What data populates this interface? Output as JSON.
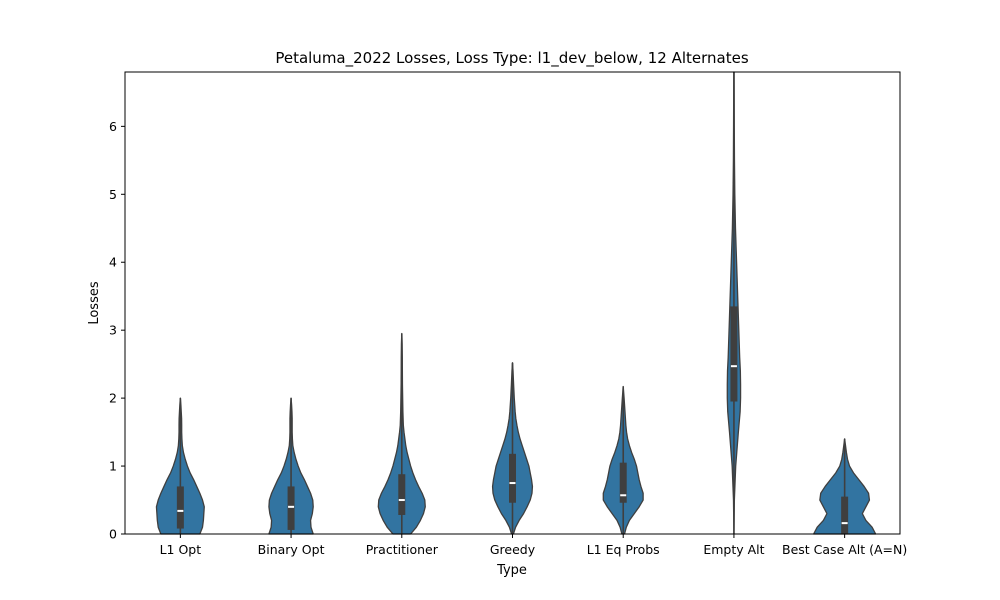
{
  "chart_data": {
    "type": "violin",
    "title": "Petaluma_2022 Losses, Loss Type: l1_dev_below, 12 Alternates",
    "xlabel": "Type",
    "ylabel": "Losses",
    "ylim": [
      0,
      6.8
    ],
    "yticks": [
      0,
      1,
      2,
      3,
      4,
      5,
      6
    ],
    "grid": false,
    "colors": {
      "fill": "#3274a1",
      "edge": "#3f3f3f",
      "box": "#3f3f3f",
      "median": "#ffffff"
    },
    "categories": [
      "L1 Opt",
      "Binary Opt",
      "Practitioner",
      "Greedy",
      "L1 Eq Probs",
      "Empty Alt",
      "Best Case Alt (A=N)"
    ],
    "series": [
      {
        "category": "L1 Opt",
        "min": 0,
        "q1": 0.08,
        "median": 0.34,
        "q3": 0.7,
        "max": 2.0,
        "profile": [
          [
            0,
            0.44
          ],
          [
            0.1,
            0.5
          ],
          [
            0.2,
            0.52
          ],
          [
            0.3,
            0.53
          ],
          [
            0.4,
            0.54
          ],
          [
            0.5,
            0.5
          ],
          [
            0.6,
            0.44
          ],
          [
            0.7,
            0.37
          ],
          [
            0.8,
            0.3
          ],
          [
            0.9,
            0.22
          ],
          [
            1.0,
            0.16
          ],
          [
            1.1,
            0.11
          ],
          [
            1.2,
            0.07
          ],
          [
            1.3,
            0.045
          ],
          [
            1.4,
            0.035
          ],
          [
            1.5,
            0.03
          ],
          [
            1.6,
            0.03
          ],
          [
            1.7,
            0.028
          ],
          [
            1.8,
            0.02
          ],
          [
            1.9,
            0.012
          ],
          [
            2.0,
            0
          ]
        ]
      },
      {
        "category": "Binary Opt",
        "min": 0,
        "q1": 0.06,
        "median": 0.4,
        "q3": 0.7,
        "max": 2.0,
        "profile": [
          [
            0,
            0.5
          ],
          [
            0.1,
            0.45
          ],
          [
            0.2,
            0.44
          ],
          [
            0.3,
            0.48
          ],
          [
            0.4,
            0.5
          ],
          [
            0.5,
            0.49
          ],
          [
            0.6,
            0.44
          ],
          [
            0.7,
            0.37
          ],
          [
            0.8,
            0.3
          ],
          [
            0.9,
            0.22
          ],
          [
            1.0,
            0.16
          ],
          [
            1.1,
            0.11
          ],
          [
            1.2,
            0.07
          ],
          [
            1.3,
            0.04
          ],
          [
            1.4,
            0.03
          ],
          [
            1.5,
            0.025
          ],
          [
            1.6,
            0.025
          ],
          [
            1.7,
            0.025
          ],
          [
            1.8,
            0.02
          ],
          [
            1.9,
            0.012
          ],
          [
            2.0,
            0
          ]
        ]
      },
      {
        "category": "Practitioner",
        "min": 0,
        "q1": 0.28,
        "median": 0.5,
        "q3": 0.88,
        "max": 2.95,
        "profile": [
          [
            0,
            0.2
          ],
          [
            0.1,
            0.33
          ],
          [
            0.2,
            0.42
          ],
          [
            0.3,
            0.49
          ],
          [
            0.4,
            0.53
          ],
          [
            0.5,
            0.52
          ],
          [
            0.6,
            0.46
          ],
          [
            0.7,
            0.38
          ],
          [
            0.8,
            0.31
          ],
          [
            0.9,
            0.25
          ],
          [
            1.0,
            0.2
          ],
          [
            1.1,
            0.16
          ],
          [
            1.2,
            0.12
          ],
          [
            1.3,
            0.09
          ],
          [
            1.4,
            0.07
          ],
          [
            1.5,
            0.05
          ],
          [
            1.6,
            0.035
          ],
          [
            1.8,
            0.025
          ],
          [
            2.0,
            0.02
          ],
          [
            2.2,
            0.015
          ],
          [
            2.4,
            0.013
          ],
          [
            2.6,
            0.012
          ],
          [
            2.8,
            0.008
          ],
          [
            2.95,
            0
          ]
        ]
      },
      {
        "category": "Greedy",
        "min": 0,
        "q1": 0.46,
        "median": 0.75,
        "q3": 1.18,
        "max": 2.52,
        "profile": [
          [
            0,
            0.02
          ],
          [
            0.1,
            0.07
          ],
          [
            0.2,
            0.15
          ],
          [
            0.3,
            0.25
          ],
          [
            0.4,
            0.33
          ],
          [
            0.5,
            0.4
          ],
          [
            0.6,
            0.44
          ],
          [
            0.7,
            0.45
          ],
          [
            0.8,
            0.43
          ],
          [
            0.9,
            0.4
          ],
          [
            1.0,
            0.37
          ],
          [
            1.1,
            0.32
          ],
          [
            1.2,
            0.27
          ],
          [
            1.3,
            0.22
          ],
          [
            1.4,
            0.17
          ],
          [
            1.5,
            0.13
          ],
          [
            1.6,
            0.1
          ],
          [
            1.7,
            0.075
          ],
          [
            1.8,
            0.06
          ],
          [
            2.0,
            0.04
          ],
          [
            2.2,
            0.025
          ],
          [
            2.4,
            0.012
          ],
          [
            2.52,
            0
          ]
        ]
      },
      {
        "category": "L1 Eq Probs",
        "min": 0,
        "q1": 0.46,
        "median": 0.57,
        "q3": 1.05,
        "max": 2.17,
        "profile": [
          [
            0,
            0.03
          ],
          [
            0.1,
            0.07
          ],
          [
            0.2,
            0.14
          ],
          [
            0.3,
            0.25
          ],
          [
            0.4,
            0.36
          ],
          [
            0.5,
            0.45
          ],
          [
            0.6,
            0.45
          ],
          [
            0.7,
            0.4
          ],
          [
            0.8,
            0.36
          ],
          [
            0.9,
            0.33
          ],
          [
            1.0,
            0.3
          ],
          [
            1.1,
            0.25
          ],
          [
            1.2,
            0.19
          ],
          [
            1.3,
            0.14
          ],
          [
            1.4,
            0.1
          ],
          [
            1.5,
            0.075
          ],
          [
            1.6,
            0.06
          ],
          [
            1.7,
            0.05
          ],
          [
            1.8,
            0.04
          ],
          [
            2.0,
            0.02
          ],
          [
            2.17,
            0
          ]
        ]
      },
      {
        "category": "Empty Alt",
        "min": 0,
        "q1": 1.95,
        "median": 2.47,
        "q3": 3.35,
        "max": 6.8,
        "profile": [
          [
            0,
            0
          ],
          [
            0.5,
            0.01
          ],
          [
            1.0,
            0.04
          ],
          [
            1.5,
            0.1
          ],
          [
            1.8,
            0.14
          ],
          [
            2.0,
            0.15
          ],
          [
            2.2,
            0.15
          ],
          [
            2.4,
            0.145
          ],
          [
            2.6,
            0.13
          ],
          [
            2.8,
            0.12
          ],
          [
            3.0,
            0.11
          ],
          [
            3.2,
            0.1
          ],
          [
            3.4,
            0.09
          ],
          [
            3.6,
            0.08
          ],
          [
            3.8,
            0.07
          ],
          [
            4.0,
            0.06
          ],
          [
            4.2,
            0.05
          ],
          [
            4.5,
            0.035
          ],
          [
            5.0,
            0.02
          ],
          [
            5.5,
            0.012
          ],
          [
            6.0,
            0.008
          ],
          [
            6.5,
            0.005
          ],
          [
            6.8,
            0.003
          ]
        ]
      },
      {
        "category": "Best Case Alt (A=N)",
        "min": 0,
        "q1": 0.0,
        "median": 0.16,
        "q3": 0.55,
        "max": 1.4,
        "profile": [
          [
            0,
            0.7
          ],
          [
            0.1,
            0.62
          ],
          [
            0.2,
            0.48
          ],
          [
            0.3,
            0.4
          ],
          [
            0.4,
            0.48
          ],
          [
            0.5,
            0.56
          ],
          [
            0.6,
            0.54
          ],
          [
            0.7,
            0.44
          ],
          [
            0.8,
            0.32
          ],
          [
            0.9,
            0.2
          ],
          [
            1.0,
            0.11
          ],
          [
            1.1,
            0.065
          ],
          [
            1.2,
            0.04
          ],
          [
            1.3,
            0.02
          ],
          [
            1.4,
            0
          ]
        ]
      }
    ]
  }
}
